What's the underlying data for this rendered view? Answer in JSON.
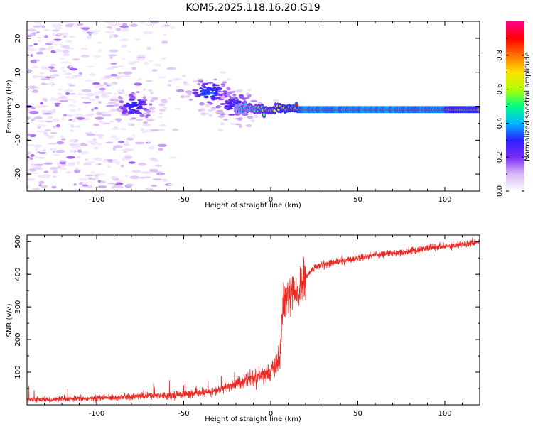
{
  "title": "KOM5.2025.118.16.20.G19",
  "colors": {
    "snr_line": "#ee2a24",
    "axis": "#000000",
    "spec_low": "#c58cf2",
    "spec_mid": "#5a1cf5"
  },
  "chart_data": [
    {
      "type": "heatmap",
      "xlabel": "Height of straight line (km)",
      "ylabel": "Frequency (Hz)",
      "xlim": [
        -140,
        120
      ],
      "ylim": [
        -25,
        25
      ],
      "xticks": [
        -100,
        -50,
        0,
        50,
        100
      ],
      "yticks": [
        -20,
        -10,
        0,
        10,
        20
      ],
      "grid": false,
      "colorbar": {
        "label": "Normalized spectral amplitude",
        "range": [
          0,
          1
        ],
        "ticks": [
          0.0,
          0.2,
          0.4,
          0.6,
          0.8
        ],
        "colormap": [
          "#ffffff",
          "#d9b8f7",
          "#7b2cf5",
          "#2a20ff",
          "#00b8ff",
          "#00ff80",
          "#b0ff00",
          "#ffe000",
          "#ff7000",
          "#ff0000",
          "#ff0090"
        ]
      },
      "description_signal": {
        "line_frequency_hz": -1,
        "strong_segment_x": [
          -20,
          120
        ],
        "cluster_centers": [
          {
            "x": -78,
            "y": 0,
            "amp": 0.25
          },
          {
            "x": -35,
            "y": 4,
            "amp": 0.3
          },
          {
            "x": -20,
            "y": 0,
            "amp": 0.25
          }
        ],
        "noise_x_range": [
          -140,
          -48
        ]
      }
    },
    {
      "type": "line",
      "xlabel": "Height of straight line (km)",
      "ylabel": "SNR (v/v)",
      "xlim": [
        -140,
        120
      ],
      "ylim": [
        0,
        520
      ],
      "xticks": [
        -100,
        -50,
        0,
        50,
        100
      ],
      "yticks": [
        100,
        200,
        300,
        400,
        500
      ],
      "grid": false,
      "series": [
        {
          "x": [
            -140,
            -120,
            -100,
            -80,
            -60,
            -40,
            -30,
            -20,
            -10,
            0,
            5,
            7,
            10,
            15,
            20,
            25,
            30,
            40,
            50,
            60,
            70,
            80,
            90,
            100,
            110,
            120
          ],
          "y": [
            15,
            17,
            20,
            25,
            30,
            35,
            45,
            65,
            85,
            100,
            130,
            300,
            330,
            340,
            390,
            420,
            430,
            440,
            450,
            460,
            465,
            470,
            480,
            485,
            492,
            500
          ]
        }
      ]
    }
  ]
}
